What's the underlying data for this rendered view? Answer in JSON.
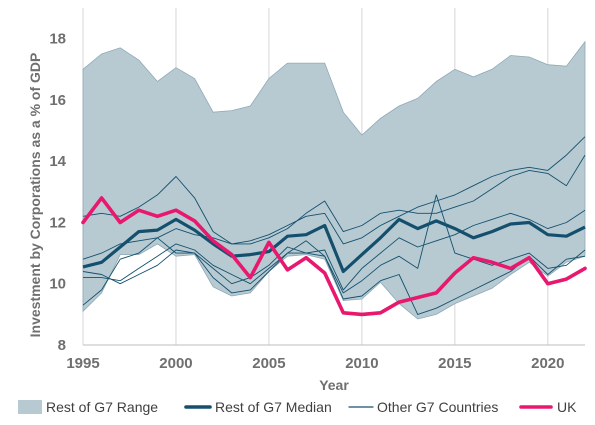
{
  "chart_data": {
    "type": "line",
    "xlabel": "Year",
    "ylabel": "Investment by Corporations as a % of GDP",
    "xlim": [
      1995,
      2022
    ],
    "ylim": [
      8,
      19
    ],
    "x_ticks": [
      "1995",
      "2000",
      "2005",
      "2010",
      "2015",
      "2020"
    ],
    "y_ticks": [
      "8",
      "10",
      "12",
      "14",
      "16",
      "18"
    ],
    "grid": "vertical",
    "legend_position": "bottom",
    "x": [
      1995,
      1996,
      1997,
      1998,
      1999,
      2000,
      2001,
      2002,
      2003,
      2004,
      2005,
      2006,
      2007,
      2008,
      2009,
      2010,
      2011,
      2012,
      2013,
      2014,
      2015,
      2016,
      2017,
      2018,
      2019,
      2020,
      2021,
      2022
    ],
    "range": {
      "name": "Rest of G7 Range",
      "upper": [
        17.0,
        17.5,
        17.7,
        17.3,
        16.6,
        17.05,
        16.7,
        15.6,
        15.65,
        15.8,
        16.7,
        17.2,
        17.2,
        17.2,
        15.6,
        14.85,
        15.4,
        15.8,
        16.05,
        16.6,
        17.0,
        16.75,
        17.0,
        17.45,
        17.4,
        17.15,
        17.1,
        17.9
      ],
      "lower": [
        9.1,
        9.7,
        10.95,
        10.95,
        11.3,
        10.9,
        10.95,
        9.9,
        9.6,
        9.7,
        10.4,
        10.9,
        10.95,
        10.8,
        9.45,
        9.5,
        10.05,
        9.35,
        8.85,
        9.0,
        9.35,
        9.6,
        9.85,
        10.3,
        10.7,
        10.25,
        10.7,
        10.9
      ]
    },
    "series": [
      {
        "name": "Rest of G7 Median",
        "color": "#14506e",
        "values": [
          10.55,
          10.7,
          11.2,
          11.7,
          11.75,
          12.1,
          11.75,
          11.3,
          10.9,
          10.95,
          11.05,
          11.55,
          11.6,
          11.9,
          10.4,
          10.95,
          11.5,
          12.1,
          11.8,
          12.05,
          11.8,
          11.5,
          11.7,
          11.95,
          12.0,
          11.6,
          11.55,
          11.85
        ]
      },
      {
        "name": "UK",
        "color": "#e8186e",
        "values": [
          12.0,
          12.8,
          12.0,
          12.4,
          12.2,
          12.4,
          12.05,
          11.4,
          10.95,
          10.2,
          11.35,
          10.45,
          10.85,
          10.35,
          9.05,
          9.0,
          9.05,
          9.4,
          9.55,
          9.7,
          10.35,
          10.85,
          10.7,
          10.5,
          10.85,
          10.0,
          10.15,
          10.5
        ]
      },
      {
        "name": "Other G7 Countries",
        "color": "#14506e",
        "values": [
          12.2,
          12.3,
          12.2,
          12.5,
          12.9,
          13.5,
          12.8,
          11.7,
          11.3,
          11.4,
          11.6,
          11.9,
          12.2,
          12.3,
          11.3,
          11.5,
          11.9,
          12.2,
          12.5,
          12.7,
          12.9,
          13.2,
          13.5,
          13.7,
          13.8,
          13.7,
          14.2,
          14.8
        ]
      },
      {
        "name": "Other G7 Countries",
        "color": "#14506e",
        "values": [
          10.8,
          11.0,
          11.3,
          11.4,
          11.5,
          11.8,
          11.6,
          11.5,
          11.3,
          11.3,
          11.5,
          11.8,
          12.3,
          12.7,
          11.7,
          11.9,
          12.3,
          12.4,
          12.3,
          12.3,
          12.5,
          12.7,
          13.1,
          13.5,
          13.7,
          13.6,
          13.2,
          14.2
        ]
      },
      {
        "name": "Other G7 Countries",
        "color": "#14506e",
        "values": [
          10.4,
          10.3,
          10.0,
          10.3,
          10.6,
          11.1,
          11.0,
          10.5,
          10.0,
          10.2,
          10.6,
          11.2,
          11.0,
          11.1,
          9.8,
          10.5,
          11.0,
          11.5,
          11.2,
          11.4,
          11.6,
          11.9,
          12.1,
          12.3,
          12.1,
          11.8,
          12.0,
          12.4
        ]
      },
      {
        "name": "Other G7 Countries",
        "color": "#14506e",
        "values": [
          10.2,
          10.2,
          10.1,
          10.5,
          10.9,
          11.3,
          11.1,
          10.6,
          10.3,
          10.0,
          10.5,
          11.0,
          11.4,
          10.9,
          9.7,
          10.1,
          10.6,
          10.9,
          10.5,
          12.9,
          11.0,
          10.8,
          10.6,
          10.8,
          11.0,
          10.5,
          10.6,
          11.1
        ]
      },
      {
        "name": "Other G7 Countries",
        "color": "#14506e",
        "values": [
          9.3,
          9.8,
          10.8,
          11.0,
          11.5,
          11.0,
          11.0,
          10.2,
          9.7,
          9.8,
          10.4,
          11.0,
          11.0,
          10.9,
          9.5,
          9.6,
          10.1,
          10.3,
          9.0,
          9.2,
          9.5,
          9.8,
          10.1,
          10.4,
          10.9,
          10.3,
          10.8,
          10.9
        ]
      }
    ]
  },
  "legend": [
    {
      "label": "Rest of G7 Range",
      "kind": "area",
      "color": "#b7cad2"
    },
    {
      "label": "Rest of G7 Median",
      "kind": "thick-line",
      "color": "#14506e"
    },
    {
      "label": "Other G7 Countries",
      "kind": "thin-line",
      "color": "#14506e"
    },
    {
      "label": "UK",
      "kind": "thick-line",
      "color": "#e8186e"
    }
  ]
}
